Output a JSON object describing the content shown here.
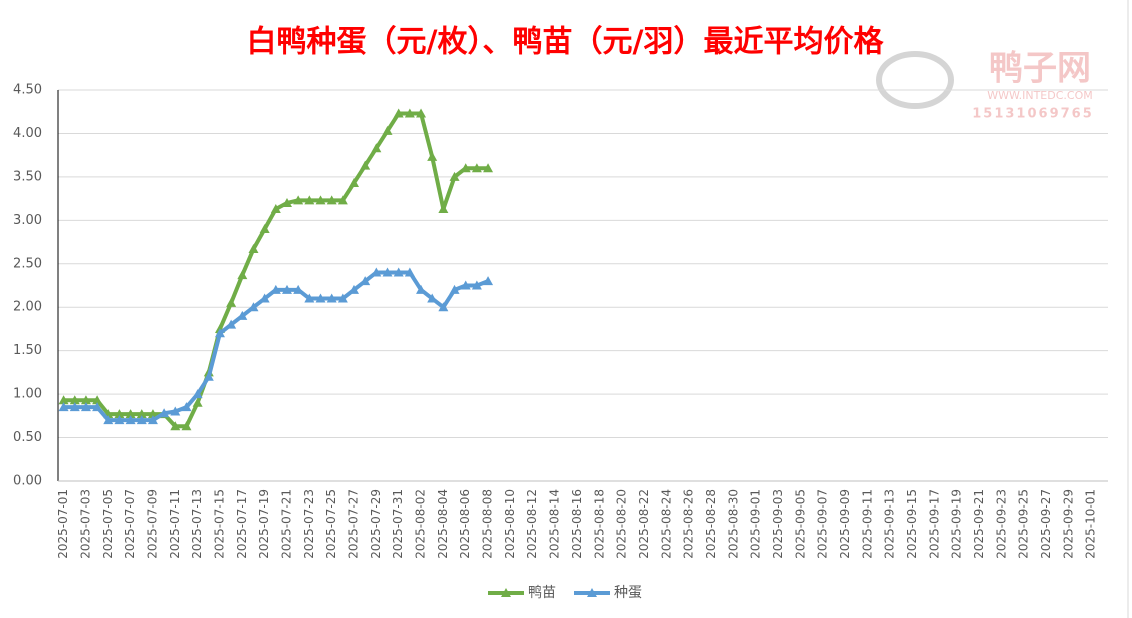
{
  "chart_data": {
    "type": "line",
    "title": "白鸭种蛋（元/枚）、鸭苗（元/羽）最近平均价格",
    "watermark": {
      "name": "鸭子网",
      "site": "WWW.INTEDC.COM",
      "phone": "15131069765"
    },
    "categories": [
      "2025-07-01",
      null,
      "2025-07-03",
      null,
      "2025-07-05",
      null,
      "2025-07-07",
      null,
      "2025-07-09",
      null,
      "2025-07-11",
      null,
      "2025-07-13",
      null,
      "2025-07-15",
      null,
      "2025-07-17",
      null,
      "2025-07-19",
      null,
      "2025-07-21",
      null,
      "2025-07-23",
      null,
      "2025-07-25",
      null,
      "2025-07-27",
      null,
      "2025-07-29",
      null,
      "2025-07-31",
      null,
      "2025-08-02",
      null,
      "2025-08-04",
      null,
      "2025-08-06",
      null,
      "2025-08-08",
      null,
      "2025-08-10",
      null,
      "2025-08-12",
      null,
      "2025-08-14",
      null,
      "2025-08-16",
      null,
      "2025-08-18",
      null,
      "2025-08-20",
      null,
      "2025-08-22",
      null,
      "2025-08-24",
      null,
      "2025-08-26",
      null,
      "2025-08-28",
      null,
      "2025-08-30",
      null,
      "2025-09-01",
      null,
      "2025-09-03",
      null,
      "2025-09-05",
      null,
      "2025-09-07",
      null,
      "2025-09-09",
      null,
      "2025-09-11",
      null,
      "2025-09-13",
      null,
      "2025-09-15",
      null,
      "2025-09-17",
      null,
      "2025-09-19",
      null,
      "2025-09-21",
      null,
      "2025-09-23",
      null,
      "2025-09-25",
      null,
      "2025-09-27",
      null,
      "2025-09-29",
      null,
      "2025-10-01",
      null
    ],
    "series": [
      {
        "name": "鸭苗",
        "color": "#70ad47",
        "values": [
          0.93,
          0.93,
          0.93,
          0.93,
          0.77,
          0.77,
          0.77,
          0.77,
          0.77,
          0.77,
          0.63,
          0.63,
          0.9,
          1.25,
          1.75,
          2.05,
          2.37,
          2.67,
          2.9,
          3.13,
          3.2,
          3.23,
          3.23,
          3.23,
          3.23,
          3.23,
          3.43,
          3.63,
          3.83,
          4.03,
          4.23,
          4.23,
          4.23,
          3.73,
          3.13,
          3.5,
          3.6,
          3.6,
          3.6,
          null,
          null,
          null,
          null,
          null,
          null,
          null,
          null,
          null,
          null,
          null,
          null,
          null,
          null,
          null,
          null,
          null,
          null,
          null,
          null,
          null,
          null,
          null,
          null,
          null,
          null,
          null,
          null,
          null,
          null,
          null,
          null,
          null,
          null,
          null,
          null,
          null,
          null,
          null,
          null,
          null,
          null,
          null,
          null,
          null,
          null,
          null,
          null,
          null,
          null,
          null,
          null,
          null,
          null,
          null
        ]
      },
      {
        "name": "种蛋",
        "color": "#5b9bd5",
        "values": [
          0.85,
          0.85,
          0.85,
          0.85,
          0.7,
          0.7,
          0.7,
          0.7,
          0.7,
          0.78,
          0.8,
          0.85,
          1.0,
          1.2,
          1.7,
          1.8,
          1.9,
          2.0,
          2.1,
          2.2,
          2.2,
          2.2,
          2.1,
          2.1,
          2.1,
          2.1,
          2.2,
          2.3,
          2.4,
          2.4,
          2.4,
          2.4,
          2.2,
          2.1,
          2.0,
          2.2,
          2.25,
          2.25,
          2.3,
          null,
          null,
          null,
          null,
          null,
          null,
          null,
          null,
          null,
          null,
          null,
          null,
          null,
          null,
          null,
          null,
          null,
          null,
          null,
          null,
          null,
          null,
          null,
          null,
          null,
          null,
          null,
          null,
          null,
          null,
          null,
          null,
          null,
          null,
          null,
          null,
          null,
          null,
          null,
          null,
          null,
          null,
          null,
          null,
          null,
          null,
          null,
          null,
          null,
          null,
          null,
          null,
          null,
          null,
          null
        ]
      }
    ],
    "ylim": [
      0,
      4.5
    ],
    "yticks": [
      {
        "value": 0,
        "label": "0.00"
      },
      {
        "value": 0.5,
        "label": "0.50"
      },
      {
        "value": 1,
        "label": "1.00"
      },
      {
        "value": 1.5,
        "label": "1.50"
      },
      {
        "value": 2,
        "label": "2.00"
      },
      {
        "value": 2.5,
        "label": "2.50"
      },
      {
        "value": 3,
        "label": "3.00"
      },
      {
        "value": 3.5,
        "label": "3.50"
      },
      {
        "value": 4,
        "label": "4.00"
      },
      {
        "value": 4.5,
        "label": "4.50"
      }
    ],
    "grid": true,
    "legend": "bottom"
  }
}
